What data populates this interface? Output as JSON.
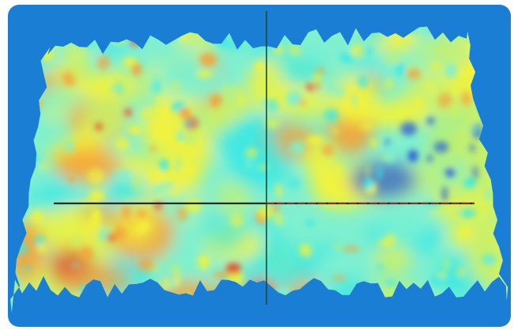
{
  "image": {
    "subject": "surface-heatmap",
    "colors": {
      "frame": "#ffffff",
      "background": "#1a7fd4",
      "deep_blue": "#2a5fd8",
      "cyan": "#3ee8e4",
      "cyan_light": "#7ff0d0",
      "green_yellow": "#c8f06a",
      "yellow": "#f4f23a",
      "orange": "#f4a23a",
      "red": "#e84a2a",
      "crosshair_vertical": "#1a4a3a",
      "crosshair_horizontal": "#2a2a2a",
      "crosshair_horizontal_red": "#d8302a"
    }
  }
}
